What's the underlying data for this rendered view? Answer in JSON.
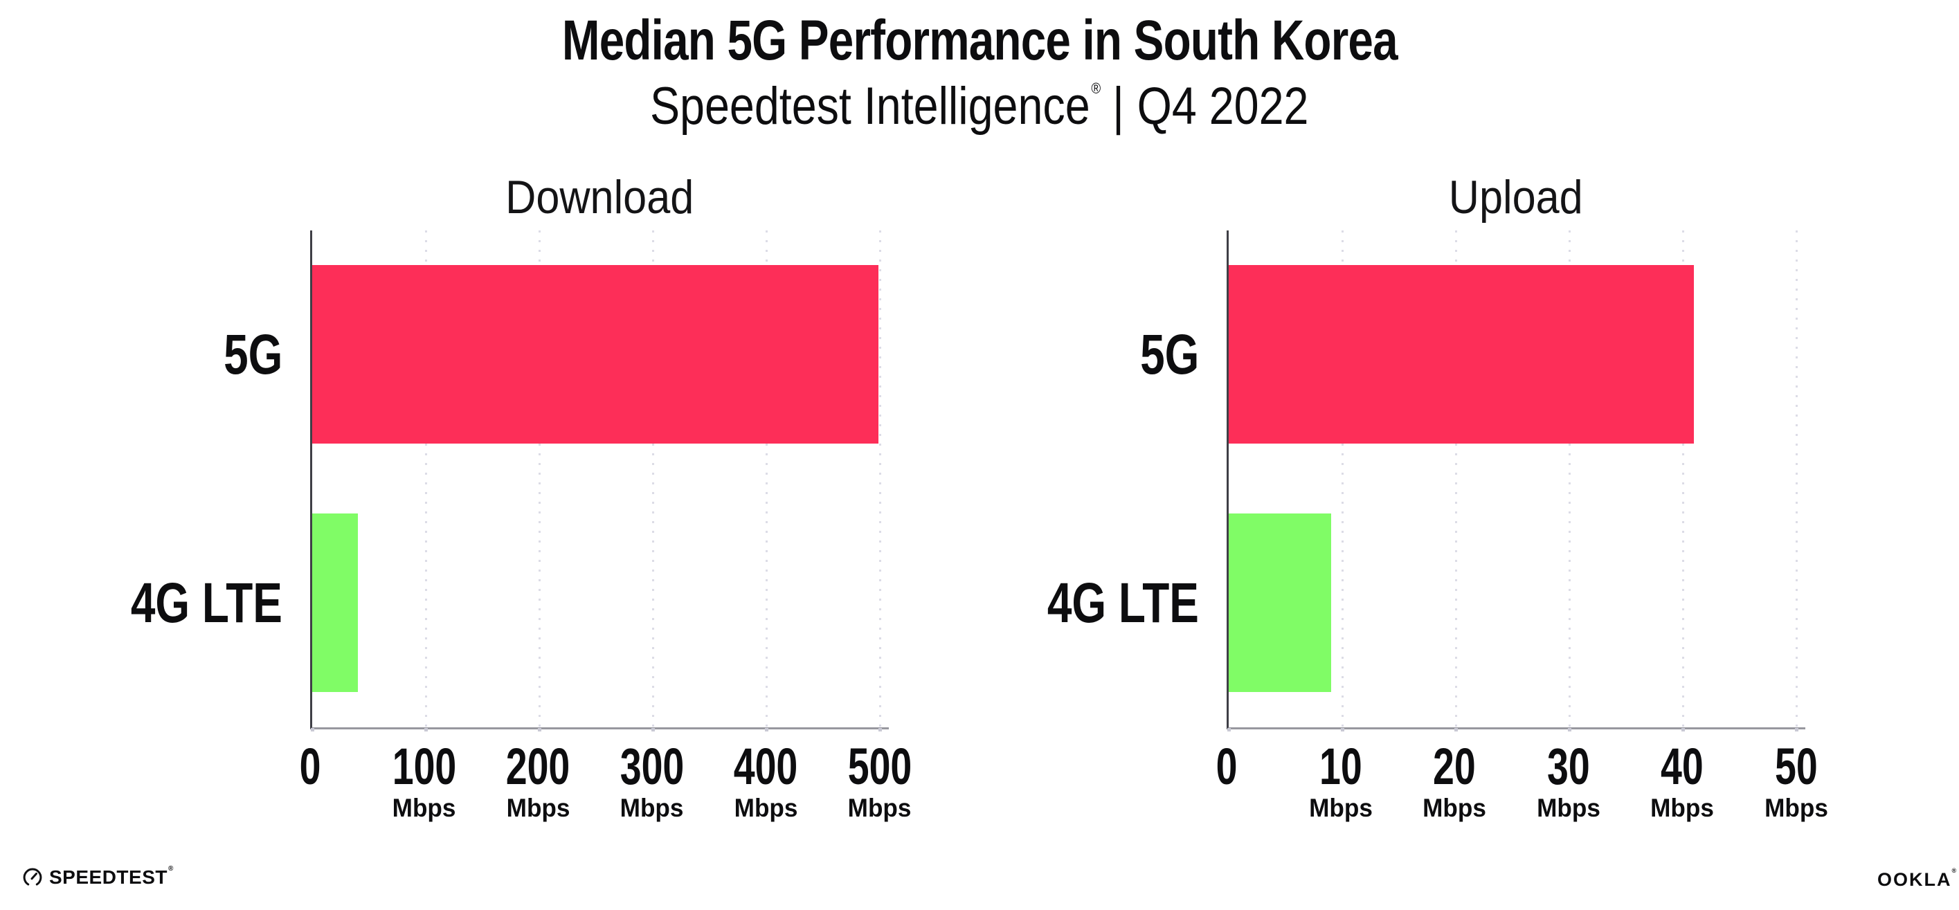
{
  "header": {
    "title": "Median 5G Performance in South Korea",
    "subtitle": {
      "brand": "Speedtest Intelligence",
      "registered_mark": "®",
      "separator": "|",
      "period": "Q4 2022"
    }
  },
  "chart_data": [
    {
      "type": "bar",
      "orientation": "horizontal",
      "title": "Download",
      "categories": [
        "5G",
        "4G LTE"
      ],
      "values": [
        499,
        40
      ],
      "unit": "Mbps",
      "xlim": [
        0,
        508
      ],
      "xticks": [
        0,
        100,
        200,
        300,
        400,
        500
      ],
      "bar_colors": [
        "#FD2E58",
        "#80FC66"
      ],
      "grid": "vertical-dotted",
      "legend": "none"
    },
    {
      "type": "bar",
      "orientation": "horizontal",
      "title": "Upload",
      "categories": [
        "5G",
        "4G LTE"
      ],
      "values": [
        41,
        9
      ],
      "unit": "Mbps",
      "xlim": [
        0,
        50.8
      ],
      "xticks": [
        0,
        10,
        20,
        30,
        40,
        50
      ],
      "bar_colors": [
        "#FD2E58",
        "#80FC66"
      ],
      "grid": "vertical-dotted",
      "legend": "none"
    }
  ],
  "footer": {
    "speedtest_logo_text": "SPEEDTEST",
    "speedtest_mark": "®",
    "ookla_logo_text": "OOKLA",
    "ookla_mark": "®"
  },
  "colors": {
    "bar_5g": "#FD2E58",
    "bar_4g_lte": "#80FC66",
    "grid_dots": "#DCDCE6",
    "y_axis_line": "#3F3F46",
    "x_baseline": "#97979F",
    "tick_dots": "#C9C9D4",
    "text": "#0D0D0F"
  }
}
